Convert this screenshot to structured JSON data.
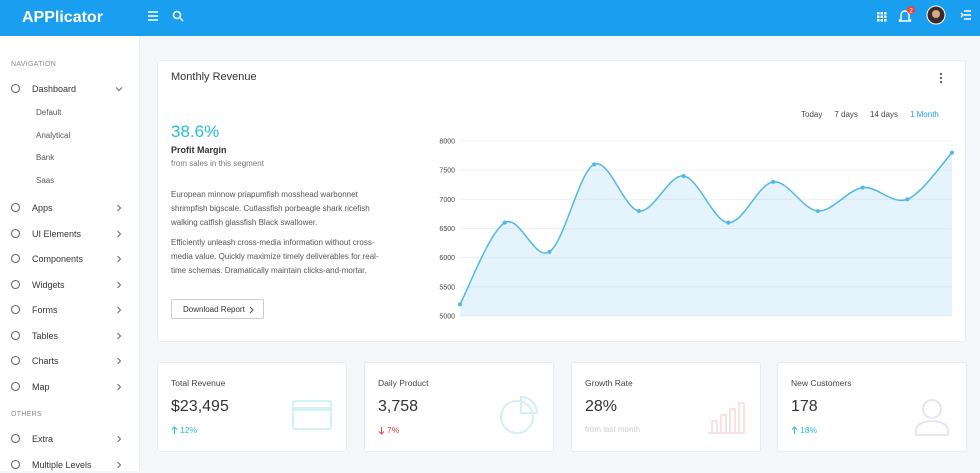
{
  "header": {
    "brand": "APPlicator",
    "notification_count": "2"
  },
  "sidebar": {
    "sections": [
      {
        "title": "NAVIGATION",
        "items": [
          {
            "label": "Dashboard",
            "expanded": true,
            "submenu": [
              "Default",
              "Analytical",
              "Bank",
              "Saas"
            ]
          },
          {
            "label": "Apps"
          },
          {
            "label": "UI Elements"
          },
          {
            "label": "Components"
          },
          {
            "label": "Widgets"
          },
          {
            "label": "Forms"
          },
          {
            "label": "Tables"
          },
          {
            "label": "Charts"
          },
          {
            "label": "Map"
          }
        ]
      },
      {
        "title": "OTHERS",
        "items": [
          {
            "label": "Extra"
          },
          {
            "label": "Multiple Levels"
          }
        ]
      }
    ]
  },
  "revenue_card": {
    "title": "Monthly Revenue",
    "ranges": [
      "Today",
      "7 days",
      "14 days",
      "1 Month"
    ],
    "active_range": 3,
    "percentage": "38.6%",
    "subtitle": "Profit Margin",
    "note": "from sales in this segment",
    "paragraphs": [
      "European minnow priapumfish mosshead warbonnet shrimpfish bigscale. Cutlassfish porbeagle shark ricefish walking catfish glassfish Black swallower.",
      "Efficiently unleash cross-media information without cross-media value. Quickly maximize timely deliverables for real-time schemas. Dramatically maintain clicks-and-mortar."
    ],
    "button": "Download Report"
  },
  "chart_data": {
    "type": "area",
    "series": [
      {
        "color": "#4fb8e8",
        "values": [
          5200,
          6600,
          6100,
          7600,
          6800,
          7400,
          6600,
          7300,
          6800,
          7200,
          7000,
          7800
        ]
      }
    ],
    "ylim": [
      5000,
      8000
    ],
    "yticks": [
      5000,
      5500,
      6000,
      6500,
      7000,
      7500,
      8000
    ],
    "grid": true
  },
  "stats": [
    {
      "title": "Total Revenue",
      "value": "$23,495",
      "change": "12%",
      "trend": "up"
    },
    {
      "title": "Daily Product",
      "value": "3,758",
      "change": "7%",
      "trend": "down"
    },
    {
      "title": "Growth Rate",
      "value": "28%",
      "note": "from last month"
    },
    {
      "title": "New Customers",
      "value": "178",
      "change": "18%",
      "trend": "up"
    }
  ]
}
